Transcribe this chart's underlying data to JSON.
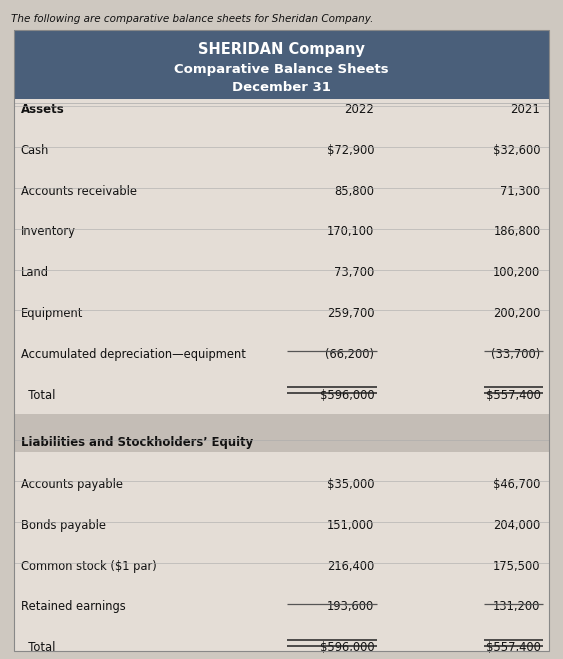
{
  "intro_text": "The following are comparative balance sheets for Sheridan Company.",
  "header_line1": "SHERIDAN Company",
  "header_line2": "Comparative Balance Sheets",
  "header_line3": "December 31",
  "header_bg": "#4a5f7a",
  "header_text_color": "#ffffff",
  "col_year1": "2022",
  "col_year2": "2021",
  "section1_label": "Assets",
  "rows_assets": [
    {
      "label": "Cash",
      "val1": "$72,900",
      "val2": "$32,600"
    },
    {
      "label": "Accounts receivable",
      "val1": "85,800",
      "val2": "71,300"
    },
    {
      "label": "Inventory",
      "val1": "170,100",
      "val2": "186,800"
    },
    {
      "label": "Land",
      "val1": "73,700",
      "val2": "100,200"
    },
    {
      "label": "Equipment",
      "val1": "259,700",
      "val2": "200,200"
    },
    {
      "label": "Accumulated depreciation—equipment",
      "val1": "(66,200)",
      "val2": "(33,700)"
    }
  ],
  "total_assets": {
    "label": "Total",
    "val1": "$596,000",
    "val2": "$557,400"
  },
  "section2_label": "Liabilities and Stockholders’ Equity",
  "rows_liabilities": [
    {
      "label": "Accounts payable",
      "val1": "$35,000",
      "val2": "$46,700"
    },
    {
      "label": "Bonds payable",
      "val1": "151,000",
      "val2": "204,000"
    },
    {
      "label": "Common stock ($1 par)",
      "val1": "216,400",
      "val2": "175,500"
    },
    {
      "label": "Retained earnings",
      "val1": "193,600",
      "val2": "131,200"
    }
  ],
  "total_liabilities": {
    "label": "Total",
    "val1": "$596,000",
    "val2": "$557,400"
  },
  "bg_color": "#cec8c0",
  "table_bg": "#e4ddd6",
  "row_line_color": "#aaaaaa",
  "text_color": "#111111",
  "section_bg": "#c4bdb6"
}
